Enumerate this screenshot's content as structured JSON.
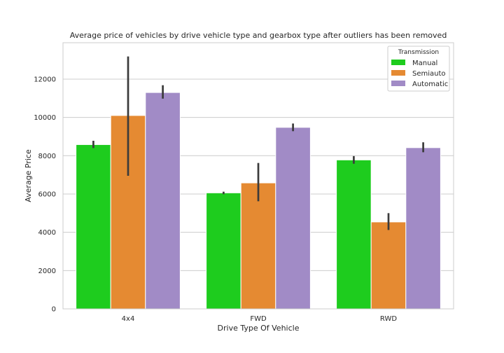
{
  "chart_data": {
    "type": "bar",
    "title": "Average price of vehicles by drive vehicle type and gearbox type after outliers has been removed",
    "xlabel": "Drive Type Of Vehicle",
    "ylabel": "Average Price",
    "categories": [
      "4x4",
      "FWD",
      "RWD"
    ],
    "ylim": [
      0,
      13900
    ],
    "yticks": [
      0,
      2000,
      4000,
      6000,
      8000,
      10000,
      12000
    ],
    "grid": true,
    "legend": {
      "title": "Transmission",
      "placement": "top-right"
    },
    "series": [
      {
        "name": "Manual",
        "color": "#1ecc1e",
        "values": [
          8580,
          6060,
          7780
        ],
        "error": [
          [
            8400,
            8780
          ],
          [
            5990,
            6120
          ],
          [
            7580,
            7980
          ]
        ]
      },
      {
        "name": "Semiauto",
        "color": "#e58a32",
        "values": [
          10100,
          6580,
          4540
        ],
        "error": [
          [
            6950,
            13180
          ],
          [
            5620,
            7620
          ],
          [
            4120,
            5000
          ]
        ]
      },
      {
        "name": "Automatic",
        "color": "#a18bc6",
        "values": [
          11300,
          9480,
          8420
        ],
        "error": [
          [
            10980,
            11680
          ],
          [
            9280,
            9680
          ],
          [
            8180,
            8700
          ]
        ]
      }
    ],
    "errorbar_color": "#3b3b3b"
  }
}
